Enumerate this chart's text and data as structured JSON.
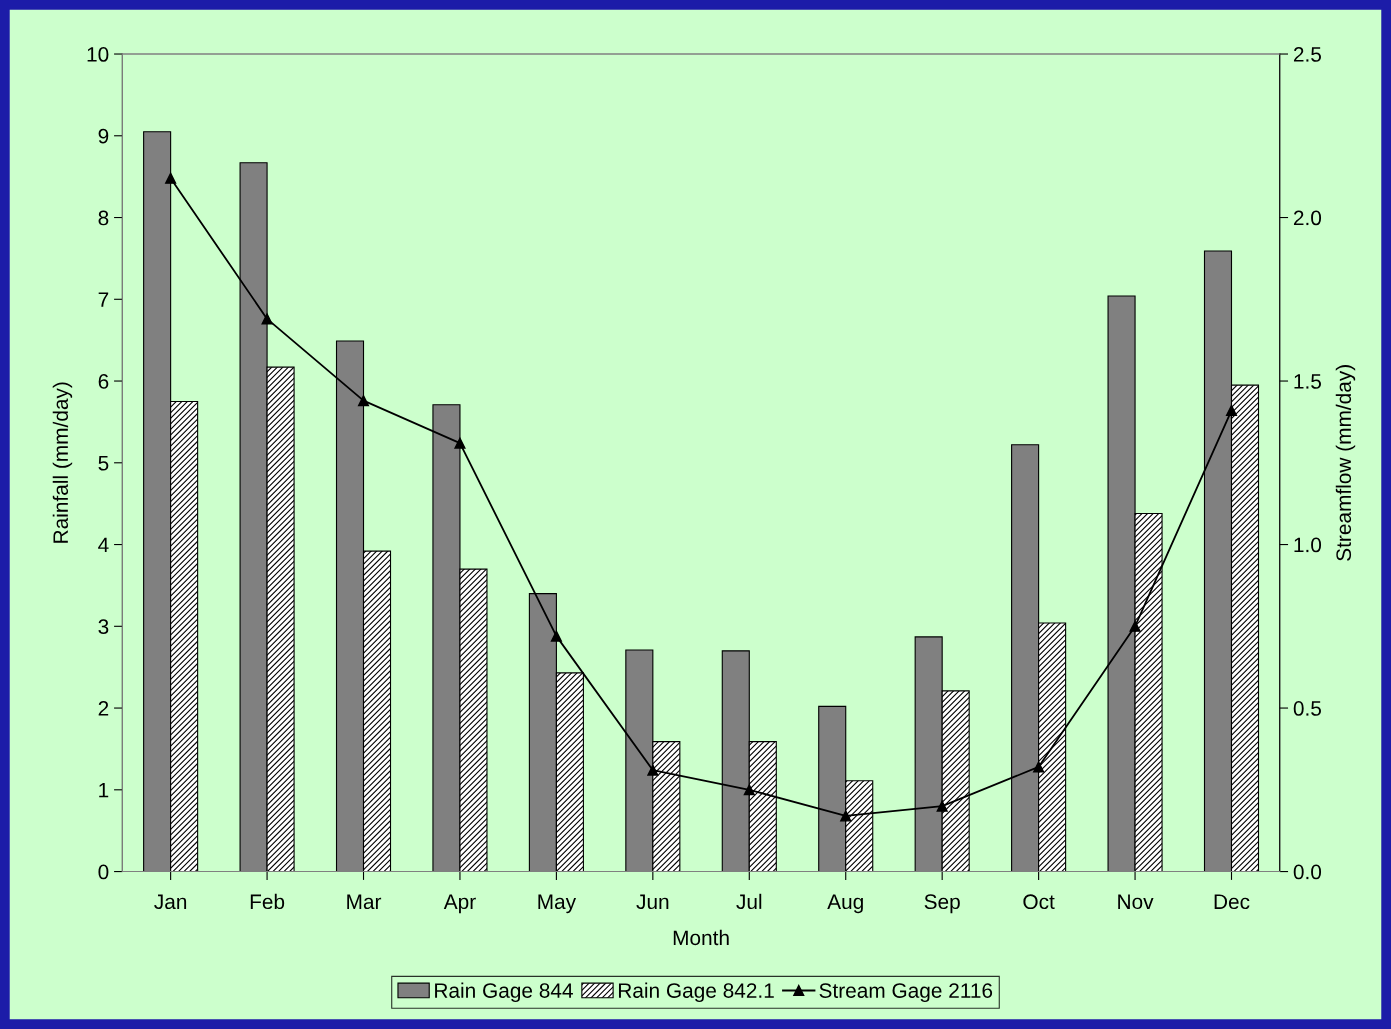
{
  "chart_data": {
    "type": "bar",
    "xlabel": "Month",
    "ylabel": "Rainfall (mm/day)",
    "y2label": "Streamflow (mm/day)",
    "categories": [
      "Jan",
      "Feb",
      "Mar",
      "Apr",
      "May",
      "Jun",
      "Jul",
      "Aug",
      "Sep",
      "Oct",
      "Nov",
      "Dec"
    ],
    "series": [
      {
        "name": "Rain Gage 844",
        "color": "#808080",
        "values": [
          9.05,
          8.67,
          6.49,
          5.71,
          3.4,
          2.71,
          2.7,
          2.02,
          2.87,
          5.22,
          7.04,
          7.59
        ]
      },
      {
        "name": "Rain Gage 842.1",
        "color": "#000000",
        "values": [
          5.75,
          6.17,
          3.92,
          3.7,
          2.43,
          1.59,
          1.59,
          1.11,
          2.21,
          3.04,
          4.38,
          5.95
        ]
      },
      {
        "name": "Stream Gage 2116",
        "type": "line",
        "axis": "y2",
        "color": "#000000",
        "marker": "triangle",
        "line_style": "solid",
        "values": [
          2.12,
          1.69,
          1.44,
          1.31,
          0.72,
          0.31,
          0.25,
          0.17,
          0.2,
          0.32,
          0.75,
          1.41
        ]
      }
    ],
    "ylim": [
      0,
      10
    ],
    "yticks": [
      0,
      1,
      2,
      3,
      4,
      5,
      6,
      7,
      8,
      9,
      10
    ],
    "y2lim": [
      0,
      2.5
    ],
    "y2ticks": [
      {
        "value": 0,
        "label": "0.0"
      },
      {
        "value": 0.5,
        "label": "0.5"
      },
      {
        "value": 1,
        "label": "1.0"
      },
      {
        "value": 1.5,
        "label": "1.5"
      },
      {
        "value": 2,
        "label": "2.0"
      },
      {
        "value": 2.5,
        "label": "2.5"
      }
    ],
    "grid": false,
    "legend": "bottom"
  }
}
